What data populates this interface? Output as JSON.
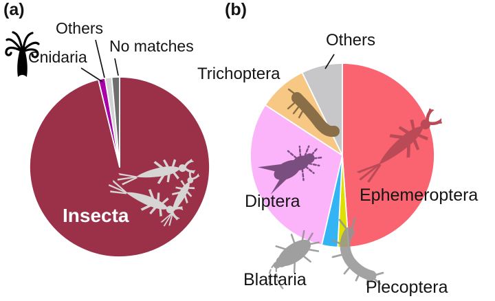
{
  "figure": {
    "panel_a_tag": "(a)",
    "panel_b_tag": "(b)"
  },
  "chart_data": [
    {
      "type": "pie",
      "panel": "(a)",
      "start_angle_deg": 0,
      "direction": "clockwise",
      "legend_position": "labels-around-pie",
      "slices": [
        {
          "label": "Insecta",
          "value": 96.2,
          "color": "#9B3049"
        },
        {
          "label": "Cnidaria",
          "value": 1.2,
          "color": "#AA00AA"
        },
        {
          "label": "Others",
          "value": 1.2,
          "color": "#D2D2D2"
        },
        {
          "label": "No matches",
          "value": 1.4,
          "color": "#6E6E6E"
        }
      ]
    },
    {
      "type": "pie",
      "panel": "(b)",
      "start_angle_deg": 0,
      "direction": "clockwise",
      "legend_position": "labels-around-pie",
      "slices": [
        {
          "label": "Ephemeroptera",
          "value": 48.9,
          "color": "#FA6470"
        },
        {
          "label": "Plecoptera",
          "value": 1.9,
          "color": "#DFDF00"
        },
        {
          "label": "Blattaria",
          "value": 2.8,
          "color": "#35B4F4"
        },
        {
          "label": "Diptera",
          "value": 30.6,
          "color": "#FBB4FA"
        },
        {
          "label": "Trichoptera",
          "value": 8.6,
          "color": "#F6C884"
        },
        {
          "label": "Others",
          "value": 7.2,
          "color": "#C7C7C9"
        }
      ]
    }
  ],
  "icons": {
    "hydra": {
      "name": "hydra-cnidaria-icon",
      "color": "#000000"
    },
    "mayfly_a": {
      "name": "mayfly-nymph-icon",
      "color": "#D7D4D4"
    },
    "mayfly_b": {
      "name": "mayfly-nymph-icon",
      "color": "#BB4A57"
    },
    "fly": {
      "name": "fly-diptera-icon",
      "color": "#7B4E80"
    },
    "caddisfly": {
      "name": "caddisfly-larva-icon",
      "color": "#8A6E48"
    },
    "cockroach": {
      "name": "cockroach-icon",
      "color": "#8F8F8F"
    },
    "stonefly": {
      "name": "stonefly-icon",
      "color": "#949494"
    }
  }
}
